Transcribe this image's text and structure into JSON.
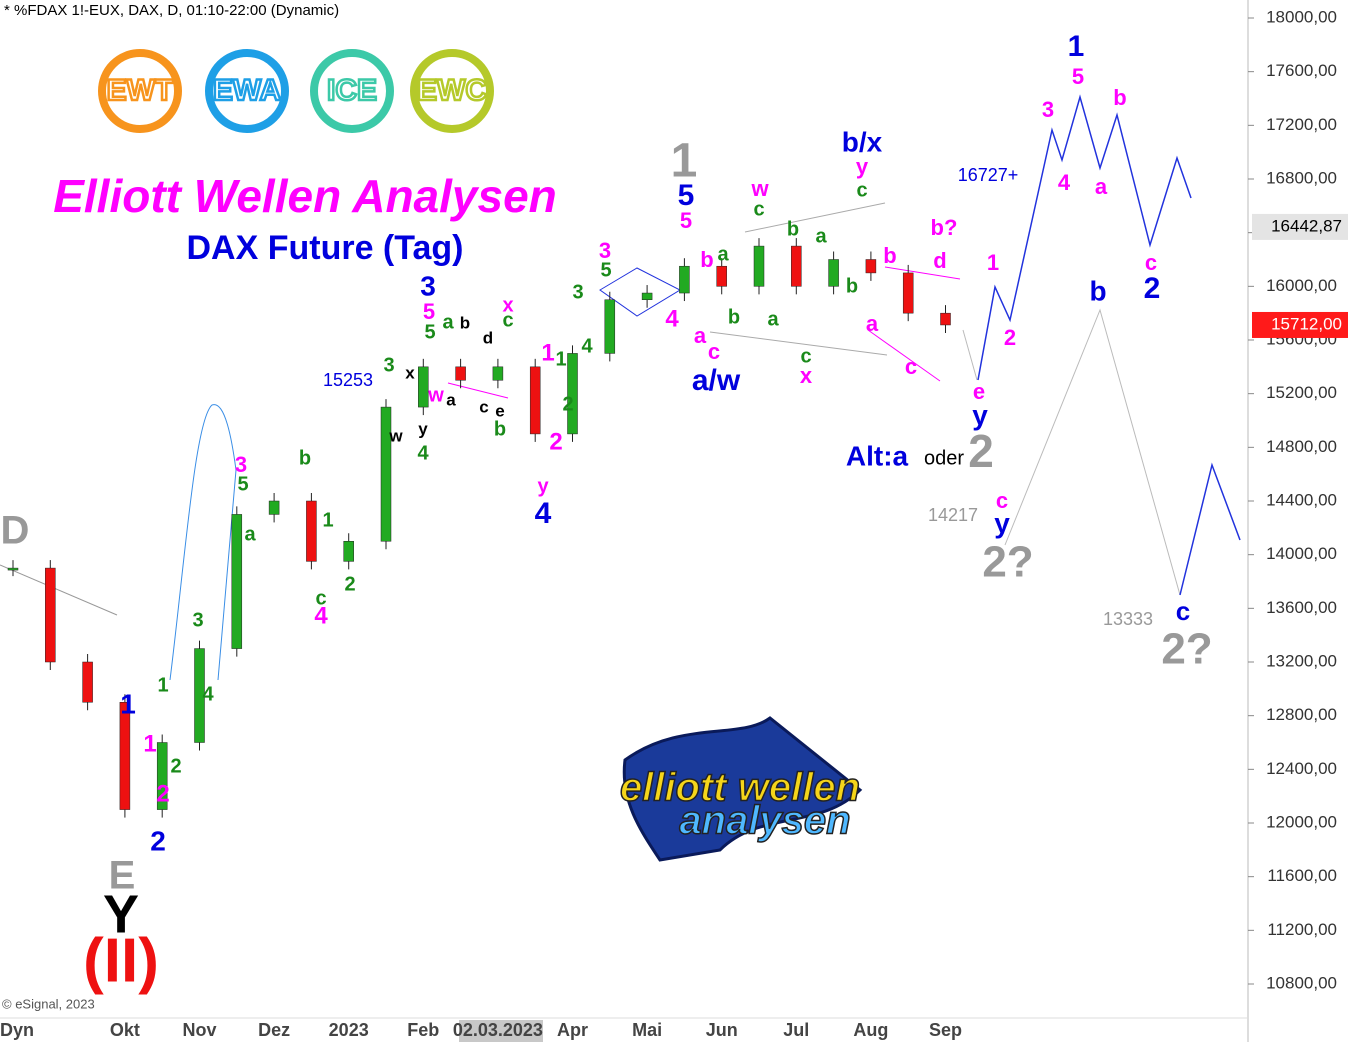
{
  "chart_data": {
    "type": "candle",
    "header": "* %FDAX 1!-EUX, DAX, D, 01:10-22:00 (Dynamic)",
    "title": "Elliott Wellen Analysen",
    "subtitle": "DAX Future (Tag)",
    "credit": "© eSignal, 2023",
    "corner_label": "Dyn",
    "badges": [
      {
        "text": "EWT",
        "color": "#f7941d"
      },
      {
        "text": "EWA",
        "color": "#1e9fe6"
      },
      {
        "text": "ICE",
        "color": "#3cc9a8"
      },
      {
        "text": "EWC",
        "color": "#b5c92a"
      }
    ],
    "logo": [
      "elliott wellen",
      "analysen"
    ],
    "categories": [
      null,
      null,
      null,
      "Okt",
      null,
      "Nov",
      null,
      "Dez",
      null,
      "2023",
      null,
      "Feb",
      null,
      "02.03.2023",
      null,
      "Apr",
      null,
      "Mai",
      null,
      "Jun",
      null,
      "Jul",
      null,
      "Aug",
      null,
      "Sep"
    ],
    "values": [
      13900,
      13200,
      12900,
      12100,
      12600,
      13300,
      14300,
      14400,
      13950,
      14100,
      15100,
      15400,
      15300,
      15400,
      14900,
      15500,
      15900,
      15950,
      16150,
      16000,
      16300,
      16000,
      16200,
      16100,
      15800,
      15712
    ],
    "up_color": "#22aa22",
    "down_color": "#ee1111",
    "ylim": [
      10800,
      18000
    ],
    "yticks": [
      {
        "value": 10800,
        "label": "10800,00"
      },
      {
        "value": 11200,
        "label": "11200,00"
      },
      {
        "value": 11600,
        "label": "11600,00"
      },
      {
        "value": 12000,
        "label": "12000,00"
      },
      {
        "value": 12400,
        "label": "12400,00"
      },
      {
        "value": 12800,
        "label": "12800,00"
      },
      {
        "value": 13200,
        "label": "13200,00"
      },
      {
        "value": 13600,
        "label": "13600,00"
      },
      {
        "value": 14000,
        "label": "14000,00"
      },
      {
        "value": 14400,
        "label": "14400,00"
      },
      {
        "value": 14800,
        "label": "14800,00"
      },
      {
        "value": 15200,
        "label": "15200,00"
      },
      {
        "value": 15600,
        "label": "15600,00"
      },
      {
        "value": 16000,
        "label": "16000,00"
      },
      {
        "value": 16400,
        "label": "16400,00"
      },
      {
        "value": 16800,
        "label": "16800,00"
      },
      {
        "value": 17200,
        "label": "17200,00"
      },
      {
        "value": 17600,
        "label": "17600,00"
      },
      {
        "value": 18000,
        "label": "18000,00"
      }
    ],
    "price_markers": [
      {
        "value": 16442.87,
        "label": "16442,87",
        "color": "#e4e4e4",
        "text_color": "#000000"
      },
      {
        "value": 15712,
        "label": "15712,00",
        "color": "#ff1a1a",
        "text_color": "#ffffff"
      }
    ],
    "annotations": [
      {
        "text": "D",
        "color": "#999999"
      },
      {
        "text": "E",
        "color": "#999999"
      },
      {
        "text": "Y",
        "color": "#000000"
      },
      {
        "text": "(II)",
        "color": "#ee1111"
      },
      {
        "text": "1",
        "color": "#0000dd"
      },
      {
        "text": "2",
        "color": "#0000dd"
      },
      {
        "text": "1",
        "color": "#ff00ff"
      },
      {
        "text": "2",
        "color": "#ff00ff"
      },
      {
        "text": "1",
        "color": "#1a8a1a"
      },
      {
        "text": "2",
        "color": "#1a8a1a"
      },
      {
        "text": "3",
        "color": "#1a8a1a"
      },
      {
        "text": "4",
        "color": "#1a8a1a"
      },
      {
        "text": "3",
        "color": "#ff00ff"
      },
      {
        "text": "5",
        "color": "#1a8a1a"
      },
      {
        "text": "a",
        "color": "#1a8a1a"
      },
      {
        "text": "b",
        "color": "#1a8a1a"
      },
      {
        "text": "1",
        "color": "#1a8a1a"
      },
      {
        "text": "c",
        "color": "#1a8a1a"
      },
      {
        "text": "4",
        "color": "#ff00ff"
      },
      {
        "text": "2",
        "color": "#1a8a1a"
      },
      {
        "text": "15253",
        "color": "#0000dd"
      },
      {
        "text": "3",
        "color": "#1a8a1a"
      },
      {
        "text": "x",
        "color": "#000000"
      },
      {
        "text": "w",
        "color": "#000000"
      },
      {
        "text": "y",
        "color": "#000000"
      },
      {
        "text": "4",
        "color": "#1a8a1a"
      },
      {
        "text": "3",
        "color": "#0000dd"
      },
      {
        "text": "5",
        "color": "#ff00ff"
      },
      {
        "text": "5",
        "color": "#1a8a1a"
      },
      {
        "text": "a",
        "color": "#1a8a1a"
      },
      {
        "text": "b",
        "color": "#000000"
      },
      {
        "text": "d",
        "color": "#000000"
      },
      {
        "text": "w",
        "color": "#ff00ff"
      },
      {
        "text": "a",
        "color": "#000000"
      },
      {
        "text": "c",
        "color": "#000000"
      },
      {
        "text": "e",
        "color": "#000000"
      },
      {
        "text": "b",
        "color": "#1a8a1a"
      },
      {
        "text": "x",
        "color": "#ff00ff"
      },
      {
        "text": "c",
        "color": "#1a8a1a"
      },
      {
        "text": "1",
        "color": "#ff00ff"
      },
      {
        "text": "1",
        "color": "#1a8a1a"
      },
      {
        "text": "2",
        "color": "#1a8a1a"
      },
      {
        "text": "2",
        "color": "#ff00ff"
      },
      {
        "text": "y",
        "color": "#ff00ff"
      },
      {
        "text": "4",
        "color": "#0000dd"
      },
      {
        "text": "3",
        "color": "#1a8a1a"
      },
      {
        "text": "4",
        "color": "#1a8a1a"
      },
      {
        "text": "3",
        "color": "#ff00ff"
      },
      {
        "text": "5",
        "color": "#1a8a1a"
      },
      {
        "text": "1",
        "color": "#999999"
      },
      {
        "text": "5",
        "color": "#0000dd"
      },
      {
        "text": "5",
        "color": "#ff00ff"
      },
      {
        "text": "b",
        "color": "#ff00ff"
      },
      {
        "text": "a",
        "color": "#1a8a1a"
      },
      {
        "text": "4",
        "color": "#ff00ff"
      },
      {
        "text": "a",
        "color": "#ff00ff"
      },
      {
        "text": "c",
        "color": "#ff00ff"
      },
      {
        "text": "b",
        "color": "#1a8a1a"
      },
      {
        "text": "a/w",
        "color": "#0000dd"
      },
      {
        "text": "w",
        "color": "#ff00ff"
      },
      {
        "text": "c",
        "color": "#1a8a1a"
      },
      {
        "text": "b",
        "color": "#1a8a1a"
      },
      {
        "text": "a",
        "color": "#1a8a1a"
      },
      {
        "text": "a",
        "color": "#1a8a1a"
      },
      {
        "text": "c",
        "color": "#1a8a1a"
      },
      {
        "text": "x",
        "color": "#ff00ff"
      },
      {
        "text": "b/x",
        "color": "#0000dd"
      },
      {
        "text": "y",
        "color": "#ff00ff"
      },
      {
        "text": "c",
        "color": "#1a8a1a"
      },
      {
        "text": "b",
        "color": "#1a8a1a"
      },
      {
        "text": "b",
        "color": "#ff00ff"
      },
      {
        "text": "a",
        "color": "#ff00ff"
      },
      {
        "text": "c",
        "color": "#ff00ff"
      },
      {
        "text": "b?",
        "color": "#ff00ff"
      },
      {
        "text": "d",
        "color": "#ff00ff"
      },
      {
        "text": "e",
        "color": "#ff00ff"
      },
      {
        "text": "y",
        "color": "#0000dd"
      },
      {
        "text": "2",
        "color": "#999999"
      },
      {
        "text": "Alt:a",
        "color": "#0000dd"
      },
      {
        "text": "oder",
        "color": "#000000"
      },
      {
        "text": "16727+",
        "color": "#0000dd"
      },
      {
        "text": "1",
        "color": "#ff00ff"
      },
      {
        "text": "2",
        "color": "#ff00ff"
      },
      {
        "text": "3",
        "color": "#ff00ff"
      },
      {
        "text": "1",
        "color": "#0000dd"
      },
      {
        "text": "5",
        "color": "#ff00ff"
      },
      {
        "text": "4",
        "color": "#ff00ff"
      },
      {
        "text": "a",
        "color": "#ff00ff"
      },
      {
        "text": "b",
        "color": "#ff00ff"
      },
      {
        "text": "c",
        "color": "#ff00ff"
      },
      {
        "text": "2",
        "color": "#0000dd"
      },
      {
        "text": "b",
        "color": "#0000dd"
      },
      {
        "text": "14217",
        "color": "#999999"
      },
      {
        "text": "c",
        "color": "#ff00ff"
      },
      {
        "text": "y",
        "color": "#0000dd"
      },
      {
        "text": "2?",
        "color": "#999999"
      },
      {
        "text": "13333",
        "color": "#999999"
      },
      {
        "text": "c",
        "color": "#0000dd"
      },
      {
        "text": "2?",
        "color": "#999999"
      }
    ]
  }
}
